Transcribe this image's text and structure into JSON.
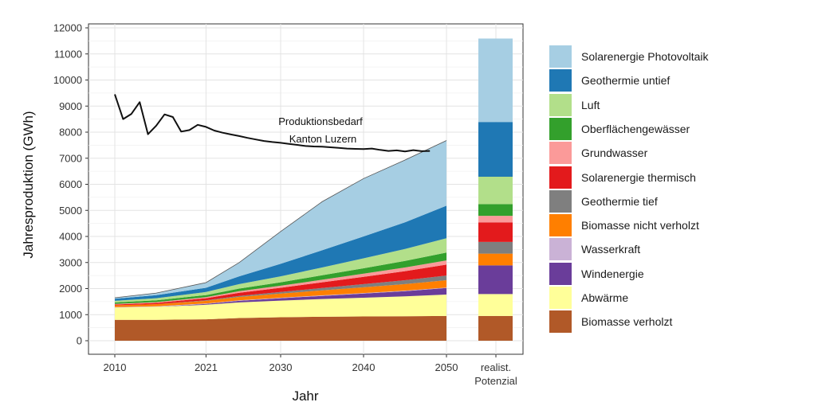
{
  "chart_data": {
    "type": "area",
    "xlabel": "Jahr",
    "ylabel": "Jahresproduktion (GWh)",
    "ylim": [
      0,
      12000
    ],
    "yticks": [
      0,
      1000,
      2000,
      3000,
      4000,
      5000,
      6000,
      7000,
      8000,
      9000,
      10000,
      11000,
      12000
    ],
    "xticks": [
      "2010",
      "2021",
      "2030",
      "2040",
      "2050"
    ],
    "x": [
      2010,
      2015,
      2021,
      2025,
      2030,
      2035,
      2040,
      2045,
      2050
    ],
    "grid": true,
    "legend_position": "right",
    "series": [
      {
        "name": "Biomasse verholzt",
        "color": "#b15928",
        "values": [
          800,
          800,
          820,
          870,
          900,
          920,
          930,
          940,
          950
        ]
      },
      {
        "name": "Abwärme",
        "color": "#ffff99",
        "values": [
          470,
          500,
          560,
          600,
          640,
          680,
          720,
          760,
          820
        ]
      },
      {
        "name": "Windenergie",
        "color": "#6a3d9a",
        "values": [
          0,
          0,
          30,
          60,
          90,
          120,
          160,
          200,
          250
        ]
      },
      {
        "name": "Wasserkraft",
        "color": "#cab2d6",
        "values": [
          20,
          20,
          20,
          20,
          20,
          20,
          20,
          20,
          20
        ]
      },
      {
        "name": "Biomasse nicht verholzt",
        "color": "#ff7f00",
        "values": [
          70,
          80,
          100,
          130,
          160,
          190,
          220,
          250,
          280
        ]
      },
      {
        "name": "Geothermie tief",
        "color": "#7f7f7f",
        "values": [
          0,
          0,
          20,
          40,
          60,
          90,
          120,
          150,
          180
        ]
      },
      {
        "name": "Solarenergie thermisch",
        "color": "#e31a1c",
        "values": [
          30,
          50,
          80,
          120,
          160,
          220,
          280,
          350,
          420
        ]
      },
      {
        "name": "Grundwasser",
        "color": "#fb9a99",
        "values": [
          20,
          30,
          40,
          60,
          80,
          100,
          120,
          140,
          160
        ]
      },
      {
        "name": "Oberflächengewässer",
        "color": "#33a02c",
        "values": [
          60,
          70,
          80,
          100,
          130,
          170,
          210,
          250,
          300
        ]
      },
      {
        "name": "Luft",
        "color": "#b2df8a",
        "values": [
          60,
          80,
          120,
          170,
          230,
          300,
          380,
          460,
          550
        ]
      },
      {
        "name": "Geothermie untief",
        "color": "#1f78b4",
        "values": [
          80,
          120,
          160,
          300,
          480,
          660,
          840,
          1020,
          1250
        ]
      },
      {
        "name": "Solarenergie Photovoltaik",
        "color": "#a6cee3",
        "values": [
          40,
          80,
          200,
          530,
          1240,
          1860,
          2220,
          2390,
          2500
        ]
      }
    ],
    "demand_line": {
      "label_line1": "Produktionsbedarf",
      "label_line2": "Kanton Luzern",
      "x": [
        2010,
        2011,
        2012,
        2013,
        2014,
        2015,
        2016,
        2017,
        2018,
        2019,
        2020,
        2021,
        2022,
        2023,
        2024,
        2025,
        2026,
        2027,
        2028,
        2029,
        2030,
        2031,
        2032,
        2033,
        2034,
        2035,
        2036,
        2037,
        2038,
        2039,
        2040,
        2041,
        2042,
        2043,
        2044,
        2045,
        2046,
        2047,
        2048
      ],
      "values": [
        9450,
        8500,
        8700,
        9150,
        7920,
        8250,
        8680,
        8580,
        8020,
        8080,
        8280,
        8200,
        8060,
        7980,
        7910,
        7850,
        7780,
        7720,
        7660,
        7620,
        7590,
        7550,
        7510,
        7470,
        7450,
        7440,
        7420,
        7400,
        7370,
        7360,
        7350,
        7370,
        7320,
        7280,
        7300,
        7260,
        7310,
        7270,
        7280
      ]
    },
    "potential_bar": {
      "label_line1": "realist.",
      "label_line2": "Potenzial",
      "values": [
        950,
        840,
        1100,
        0,
        450,
        450,
        750,
        250,
        450,
        1050,
        2100,
        3200
      ]
    }
  }
}
